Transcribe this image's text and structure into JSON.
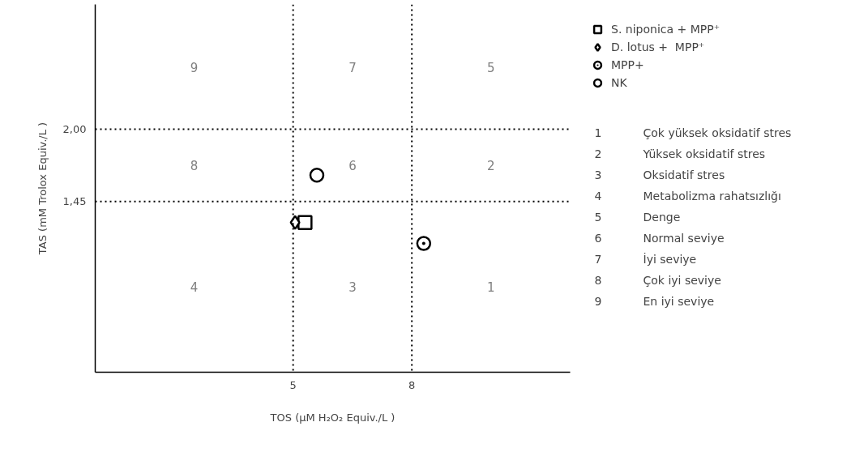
{
  "chart_data": {
    "type": "scatter",
    "xlabel": "TOS (μM H₂O₂ Equiv./L )",
    "ylabel": "TAS (mM Trolox Equiv./L )",
    "xlim": [
      0,
      12
    ],
    "ylim": [
      0.15,
      2.95
    ],
    "xticks": [
      5,
      8
    ],
    "yticks": [
      {
        "value": 1.45,
        "label": "1,45"
      },
      {
        "value": 2.0,
        "label": "2,00"
      }
    ],
    "grid": false,
    "legend": "right",
    "series": [
      {
        "name": "S. niponica + MPP⁺",
        "color": "#000000",
        "marker": "square",
        "x": [
          5.3
        ],
        "values": [
          1.29
        ]
      },
      {
        "name": "D. lotus +  MPP⁺",
        "color": "#000000",
        "marker": "diamond",
        "x": [
          5.05
        ],
        "values": [
          1.29
        ]
      },
      {
        "name": "MPP+",
        "color": "#000000",
        "marker": "circle_dot",
        "x": [
          8.3
        ],
        "values": [
          1.13
        ]
      },
      {
        "name": "NK",
        "color": "#000000",
        "marker": "circle",
        "x": [
          5.6
        ],
        "values": [
          1.65
        ]
      }
    ],
    "ref_lines": [
      {
        "axis": "x",
        "value": 5,
        "line_style": "dotted",
        "color": "#000000"
      },
      {
        "axis": "x",
        "value": 8,
        "line_style": "dotted",
        "color": "#000000"
      },
      {
        "axis": "y",
        "value": 1.45,
        "line_style": "dotted",
        "color": "#000000"
      },
      {
        "axis": "y",
        "value": 2.0,
        "line_style": "dotted",
        "color": "#000000"
      }
    ],
    "annotations": [
      "9",
      "7",
      "5",
      "8",
      "6",
      "2",
      "4",
      "3",
      "1",
      "1 Çok yüksek oksidatif stres",
      "2 Yüksek oksidatif stres",
      "3 Oksidatif stres",
      "4 Metabolizma rahatsızlığı",
      "5 Denge",
      "6 Normal seviye",
      "7 İyi seviye",
      "8 Çok iyi seviye",
      "9 En iyi seviye"
    ]
  }
}
